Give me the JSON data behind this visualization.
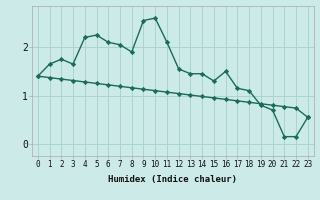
{
  "xlabel": "Humidex (Indice chaleur)",
  "background_color": "#cceae8",
  "grid_color": "#aad4d0",
  "line_color": "#1a6b5a",
  "x_values": [
    0,
    1,
    2,
    3,
    4,
    5,
    6,
    7,
    8,
    9,
    10,
    11,
    12,
    13,
    14,
    15,
    16,
    17,
    18,
    19,
    20,
    21,
    22,
    23
  ],
  "y_series1": [
    1.4,
    1.65,
    1.75,
    1.65,
    2.2,
    2.25,
    2.1,
    2.05,
    1.9,
    2.55,
    2.6,
    2.1,
    1.55,
    1.45,
    1.45,
    1.3,
    1.5,
    1.15,
    1.1,
    0.8,
    0.7,
    0.15,
    0.15,
    0.55
  ],
  "y_series2": [
    1.4,
    1.37,
    1.34,
    1.31,
    1.28,
    1.25,
    1.22,
    1.19,
    1.16,
    1.13,
    1.1,
    1.07,
    1.04,
    1.01,
    0.98,
    0.95,
    0.92,
    0.89,
    0.86,
    0.83,
    0.8,
    0.77,
    0.74,
    0.55
  ],
  "ylim": [
    -0.25,
    2.85
  ],
  "yticks": [
    0,
    1,
    2
  ],
  "x_labels": [
    "0",
    "1",
    "2",
    "3",
    "4",
    "5",
    "6",
    "7",
    "8",
    "9",
    "10",
    "11",
    "12",
    "13",
    "14",
    "15",
    "16",
    "17",
    "18",
    "19",
    "20",
    "21",
    "22",
    "23"
  ],
  "marker": "D",
  "marker_size": 2.2,
  "line_width": 1.0,
  "xlabel_fontsize": 6.5,
  "tick_fontsize": 5.5,
  "ytick_fontsize": 7
}
